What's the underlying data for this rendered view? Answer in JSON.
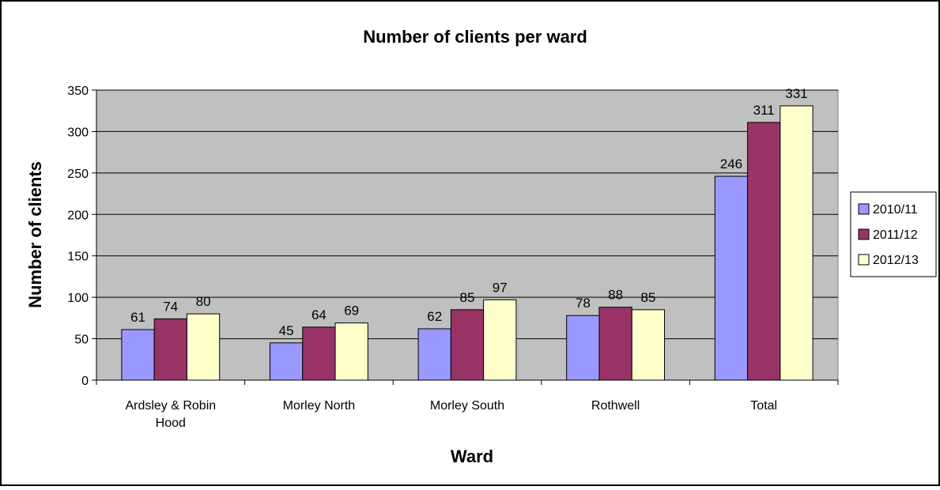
{
  "chart_data": {
    "type": "bar",
    "title": "Number of clients per ward",
    "xlabel": "Ward",
    "ylabel": "Number of clients",
    "ylim": [
      0,
      350
    ],
    "yticks": [
      0,
      50,
      100,
      150,
      200,
      250,
      300,
      350
    ],
    "categories": [
      [
        "Ardsley & Robin",
        "Hood"
      ],
      [
        "Morley North"
      ],
      [
        "Morley South"
      ],
      [
        "Rothwell"
      ],
      [
        "Total"
      ]
    ],
    "series": [
      {
        "name": "2010/11",
        "color": "#9999ff",
        "values": [
          61,
          45,
          62,
          78,
          246
        ]
      },
      {
        "name": "2011/12",
        "color": "#993366",
        "values": [
          74,
          64,
          85,
          88,
          311
        ]
      },
      {
        "name": "2012/13",
        "color": "#ffffcc",
        "values": [
          80,
          69,
          97,
          85,
          331
        ]
      }
    ],
    "grid": true,
    "plot_background": "#c0c0c0",
    "legend_position": "right"
  }
}
